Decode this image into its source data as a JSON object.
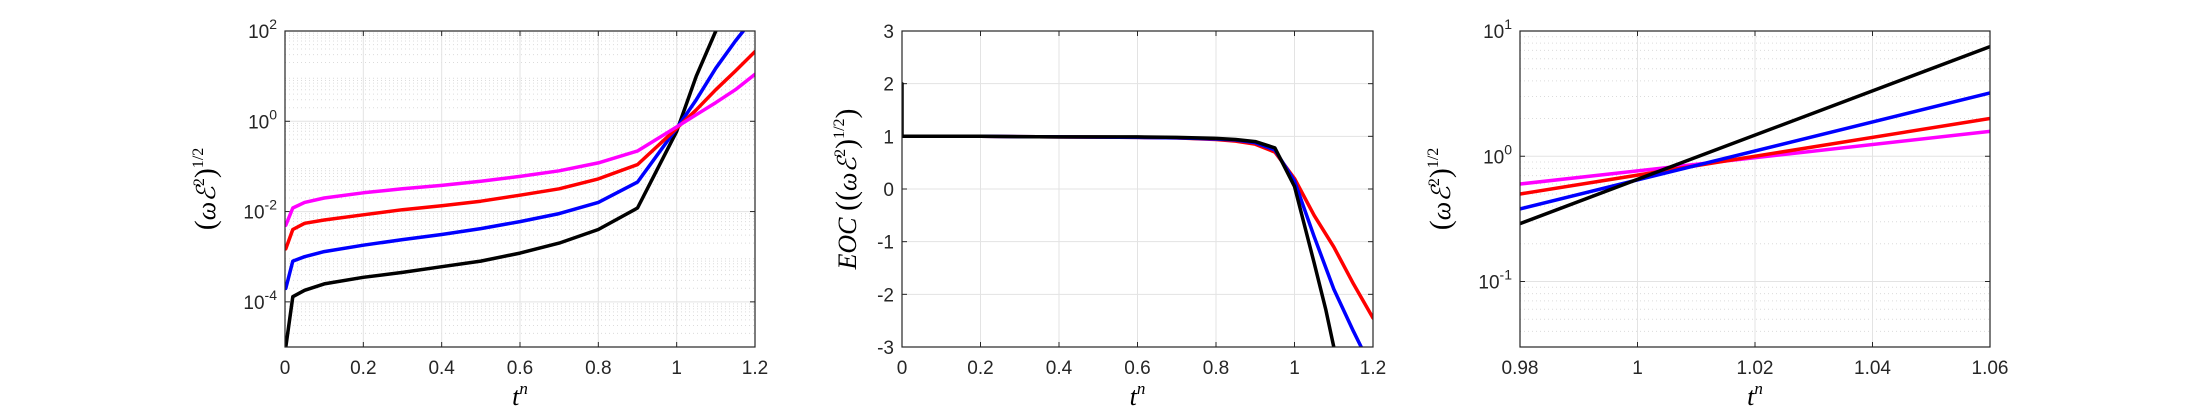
{
  "chart_data": [
    {
      "type": "line",
      "yscale": "log",
      "xlabel": "t^n",
      "ylabel": "(ωE^2)^1/2",
      "xlim": [
        0,
        1.2
      ],
      "ylim": [
        1e-05,
        100
      ],
      "grid": "major and minor",
      "x_ticks": [
        "0",
        "0.2",
        "0.4",
        "0.6",
        "0.8",
        "1",
        "1.2"
      ],
      "y_ticks": [
        {
          "base": "10",
          "exp": "-4",
          "value": 0.0001
        },
        {
          "base": "10",
          "exp": "-2",
          "value": 0.01
        },
        {
          "base": "10",
          "exp": "0",
          "value": 1
        },
        {
          "base": "10",
          "exp": "2",
          "value": 100
        }
      ],
      "series": [
        {
          "color": "#000000",
          "x": [
            0.002,
            0.02,
            0.05,
            0.1,
            0.2,
            0.3,
            0.4,
            0.5,
            0.6,
            0.7,
            0.8,
            0.9,
            1.0,
            1.05,
            1.1
          ],
          "y": [
            1e-05,
            0.00013,
            0.00018,
            0.00025,
            0.00035,
            0.00045,
            0.0006,
            0.0008,
            0.0012,
            0.002,
            0.004,
            0.012,
            0.6,
            10,
            100
          ]
        },
        {
          "color": "#0000ff",
          "x": [
            0.002,
            0.02,
            0.05,
            0.1,
            0.2,
            0.3,
            0.4,
            0.5,
            0.6,
            0.7,
            0.8,
            0.9,
            1.0,
            1.05,
            1.1,
            1.15,
            1.17
          ],
          "y": [
            0.0002,
            0.0008,
            0.001,
            0.0013,
            0.0018,
            0.0024,
            0.0031,
            0.0042,
            0.006,
            0.009,
            0.016,
            0.045,
            0.7,
            3,
            15,
            60,
            100
          ]
        },
        {
          "color": "#ff0000",
          "x": [
            0.002,
            0.02,
            0.05,
            0.1,
            0.2,
            0.3,
            0.4,
            0.5,
            0.6,
            0.7,
            0.8,
            0.9,
            1.0,
            1.05,
            1.1,
            1.15,
            1.2
          ],
          "y": [
            0.0015,
            0.004,
            0.0055,
            0.0065,
            0.0085,
            0.011,
            0.0135,
            0.017,
            0.023,
            0.032,
            0.053,
            0.11,
            0.7,
            1.8,
            5,
            13,
            35
          ]
        },
        {
          "color": "#ff00ff",
          "x": [
            0.002,
            0.02,
            0.05,
            0.1,
            0.2,
            0.3,
            0.4,
            0.5,
            0.6,
            0.7,
            0.8,
            0.9,
            1.0,
            1.05,
            1.1,
            1.15,
            1.2
          ],
          "y": [
            0.005,
            0.012,
            0.016,
            0.02,
            0.026,
            0.032,
            0.038,
            0.047,
            0.06,
            0.08,
            0.12,
            0.22,
            0.75,
            1.4,
            2.6,
            5,
            11
          ]
        }
      ]
    },
    {
      "type": "line",
      "yscale": "linear",
      "xlabel": "t^n",
      "ylabel": "EOC ((ωE^2)^1/2)",
      "xlim": [
        0,
        1.2
      ],
      "ylim": [
        -3,
        3
      ],
      "grid": "major",
      "x_ticks": [
        "0",
        "0.2",
        "0.4",
        "0.6",
        "0.8",
        "1",
        "1.2"
      ],
      "y_ticks": [
        "-3",
        "-2",
        "-1",
        "0",
        "1",
        "2",
        "3"
      ],
      "series": [
        {
          "color": "#ff0000",
          "x": [
            0,
            0.2,
            0.4,
            0.6,
            0.7,
            0.8,
            0.85,
            0.9,
            0.95,
            1.0,
            1.05,
            1.1,
            1.15,
            1.2
          ],
          "y": [
            1,
            1,
            0.99,
            0.98,
            0.97,
            0.94,
            0.91,
            0.85,
            0.7,
            0.2,
            -0.5,
            -1.1,
            -1.8,
            -2.45
          ]
        },
        {
          "color": "#0000ff",
          "x": [
            0,
            0.2,
            0.4,
            0.6,
            0.7,
            0.8,
            0.85,
            0.9,
            0.95,
            1.0,
            1.05,
            1.1,
            1.15,
            1.17
          ],
          "y": [
            1,
            1,
            0.99,
            0.98,
            0.97,
            0.95,
            0.93,
            0.88,
            0.74,
            0.15,
            -0.9,
            -1.9,
            -2.7,
            -3
          ]
        },
        {
          "color": "#000000",
          "x": [
            0,
            0,
            0.002,
            0.2,
            0.4,
            0.6,
            0.7,
            0.8,
            0.85,
            0.9,
            0.95,
            1.0,
            1.05,
            1.08,
            1.1
          ],
          "y": [
            2,
            1,
            1,
            1,
            0.99,
            0.99,
            0.98,
            0.96,
            0.94,
            0.9,
            0.78,
            0.05,
            -1.4,
            -2.3,
            -3
          ]
        }
      ]
    },
    {
      "type": "line",
      "yscale": "log",
      "xlabel": "t^n",
      "ylabel": "(ωE^2)^1/2",
      "xlim": [
        0.98,
        1.06
      ],
      "ylim": [
        0.03,
        10
      ],
      "grid": "major and minor",
      "x_ticks": [
        "0.98",
        "1",
        "1.02",
        "1.04",
        "1.06"
      ],
      "y_ticks": [
        {
          "base": "10",
          "exp": "-1",
          "value": 0.1
        },
        {
          "base": "10",
          "exp": "0",
          "value": 1
        },
        {
          "base": "10",
          "exp": "1",
          "value": 10
        }
      ],
      "series": [
        {
          "color": "#ff00ff",
          "x": [
            0.98,
            1.06
          ],
          "y": [
            0.6,
            1.58
          ]
        },
        {
          "color": "#ff0000",
          "x": [
            0.98,
            1.06
          ],
          "y": [
            0.5,
            2.0
          ]
        },
        {
          "color": "#0000ff",
          "x": [
            0.98,
            1.06
          ],
          "y": [
            0.38,
            3.2
          ]
        },
        {
          "color": "#000000",
          "x": [
            0.98,
            1.06
          ],
          "y": [
            0.29,
            7.5
          ]
        }
      ]
    }
  ]
}
